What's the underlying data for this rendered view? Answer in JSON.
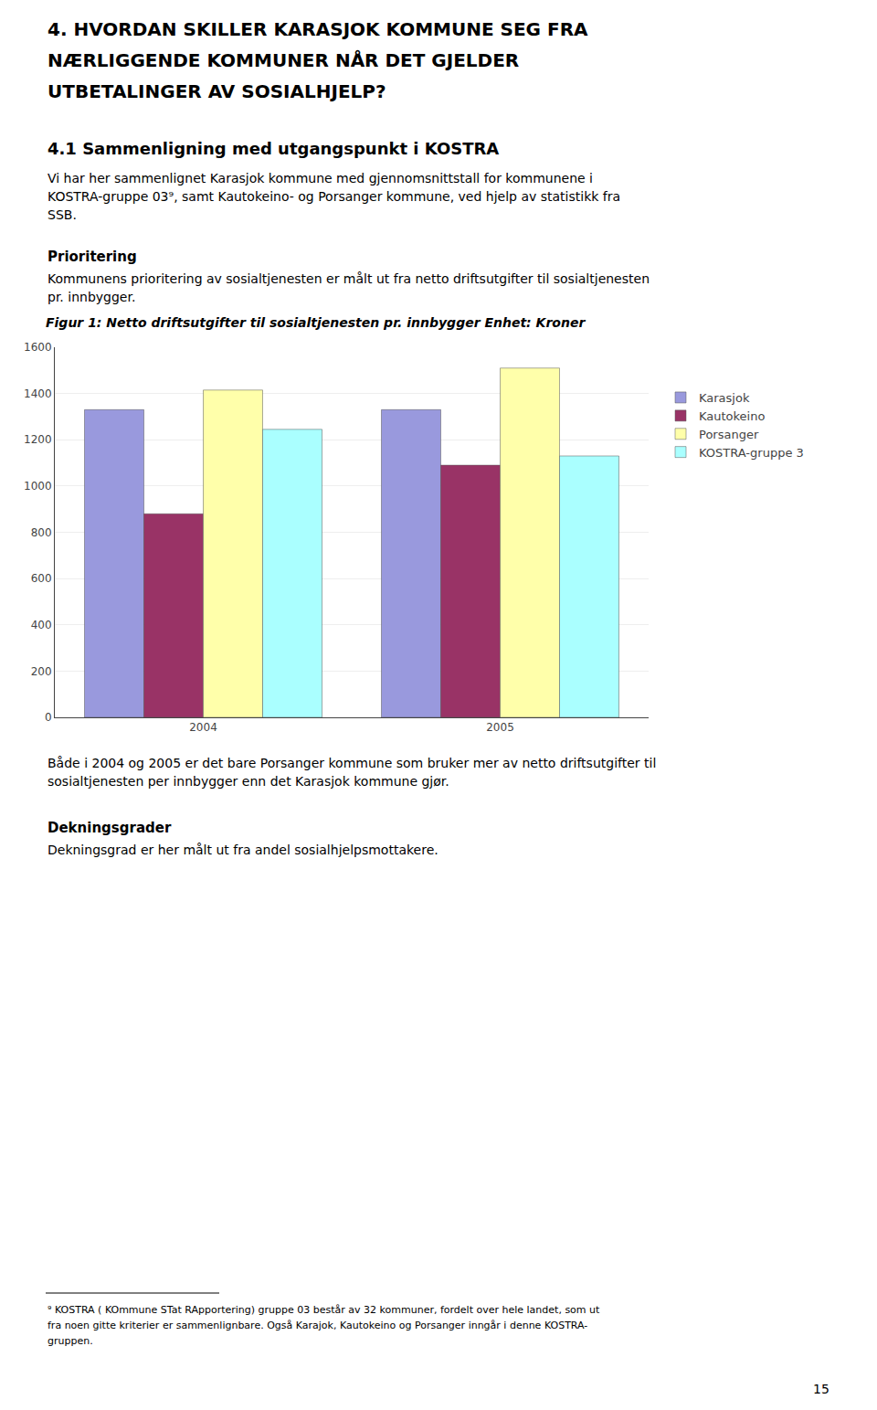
{
  "chart_data": {
    "type": "bar",
    "title": "Figur 1: Netto driftsutgifter til sosialtjenesten pr. innbygger Enhet: Kroner",
    "annotations": [
      "4. HVORDAN SKILLER KARASJOK KOMMUNE SEG FRA",
      "NÆRLIGGENDE KOMMUNER NÅR DET GJELDER",
      "UTBETALINGER AV SOSIALHJELP?",
      "4.1 Sammenligning med utgangspunkt i KOSTRA",
      "Vi har her sammenlignet Karasjok kommune med gjennomsnittstall for kommunene i",
      "KOSTRA-gruppe 03⁹, samt Kautokeino- og Porsanger kommune, ved hjelp av statistikk fra",
      "SSB.",
      "Prioritering",
      "Kommunens prioritering av sosialtjenesten er målt ut fra netto driftsutgifter til sosialtjenesten",
      "pr. innbygger.",
      "Både i 2004 og 2005 er det bare Porsanger kommune som bruker mer av netto driftsutgifter til",
      "sosialtjenesten per innbygger enn det Karasjok kommune gjør.",
      "Dekningsgrader",
      "Dekningsgrad er her målt ut fra andel sosialhjelpsmottakere.",
      "⁹ KOSTRA ( KOmmune STat RApportering) gruppe 03 består av 32 kommuner, fordelt over hele landet, som ut",
      "fra noen gitte kriterier er sammenlignbare. Også Karajok, Kautokeino og Porsanger inngår i denne KOSTRA-",
      "gruppen.",
      "15"
    ],
    "categories": [
      "2004",
      "2005"
    ],
    "series": [
      {
        "name": "Karasjok",
        "color": "#9999dd",
        "values": [
          1330,
          1330
        ]
      },
      {
        "name": "Kautokeino",
        "color": "#993366",
        "values": [
          880,
          1090
        ]
      },
      {
        "name": "Porsanger",
        "color": "#ffffaa",
        "values": [
          1415,
          1510
        ]
      },
      {
        "name": "KOSTRA-gruppe 3",
        "color": "#aaffff",
        "values": [
          1245,
          1130
        ]
      }
    ],
    "ylim": [
      0,
      1600
    ],
    "yticks": [
      0,
      200,
      400,
      600,
      800,
      1000,
      1200,
      1400,
      1600
    ],
    "grid": true,
    "legend": "right"
  }
}
